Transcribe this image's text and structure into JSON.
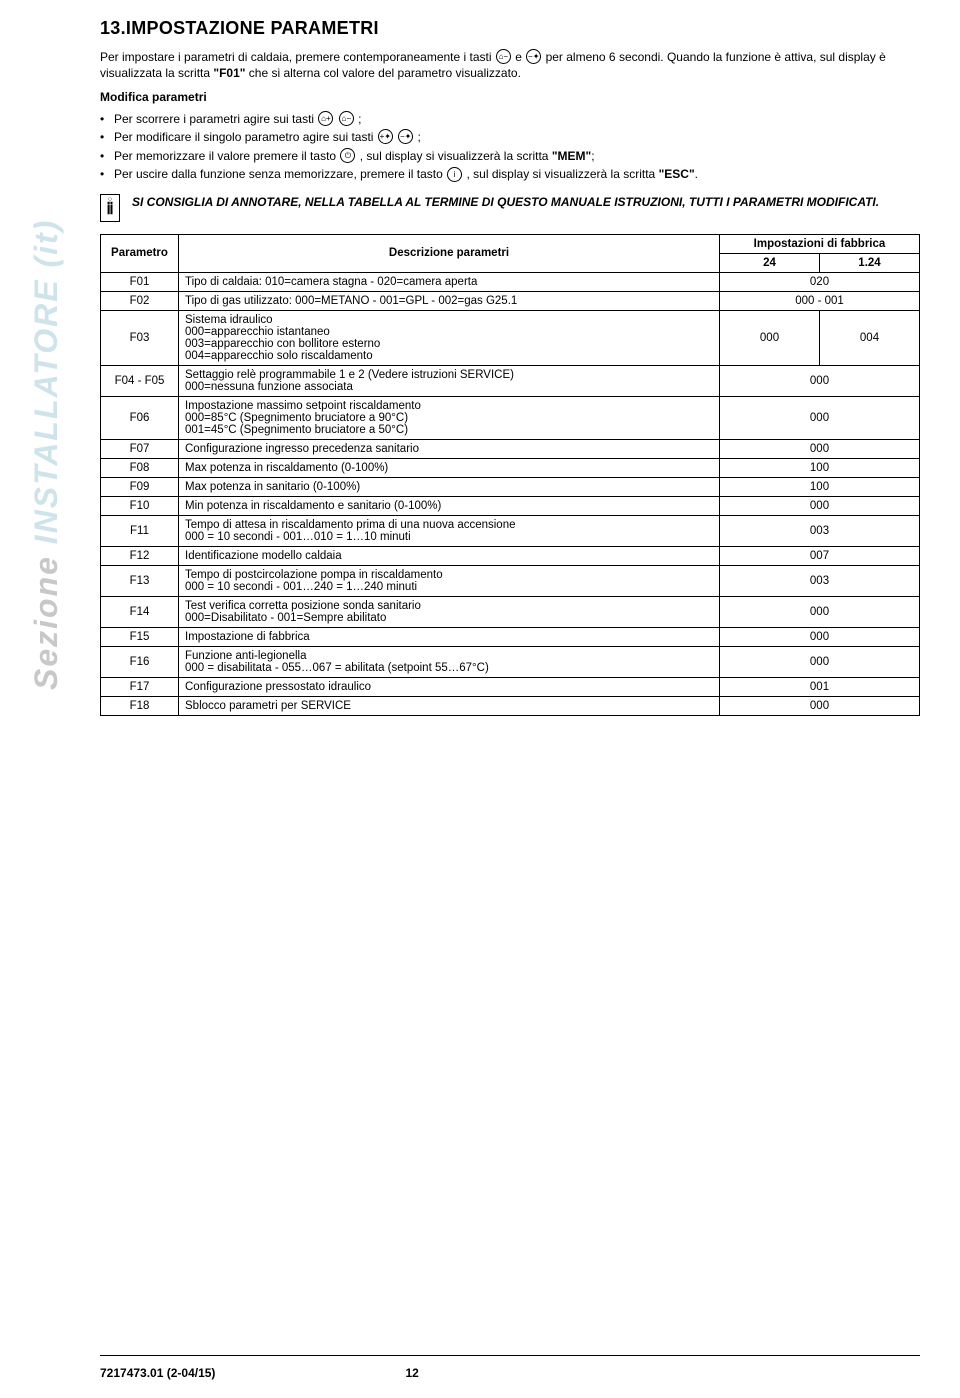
{
  "side_label_primary": "Sezione",
  "side_label_secondary": "INSTALLATORE (it)",
  "title": "13.IMPOSTAZIONE PARAMETRI",
  "intro1_a": "Per impostare i parametri di caldaia, premere contemporaneamente i tasti ",
  "intro1_b": " e ",
  "intro1_c": " per almeno 6 secondi. Quando la funzione è attiva, sul display è visualizzata la scritta ",
  "intro1_f01": "\"F01\"",
  "intro1_d": " che si alterna col valore del parametro visualizzato.",
  "subhead": "Modifica parametri",
  "b1_a": "Per scorrere i parametri agire sui tasti ",
  "b1_b": " ;",
  "b2_a": "Per modificare il singolo parametro agire sui tasti ",
  "b2_b": " ;",
  "b3_a": "Per memorizzare il valore premere il tasto ",
  "b3_b": " , sul display si visualizzerà la scritta ",
  "b3_mem": "\"MEM\"",
  "b3_c": ";",
  "b4_a": "Per uscire dalla funzione senza memorizzare, premere il tasto ",
  "b4_b": " , sul display si visualizzerà la scritta ",
  "b4_esc": "\"ESC\"",
  "b4_c": ".",
  "icon_rad_minus": "⌂−",
  "icon_tap_minus": "−✦",
  "icon_rad_plus": "⌂+",
  "icon_tap_plus": "+✦",
  "icon_power": "⏻",
  "icon_info": "i",
  "note_text": "SI CONSIGLIA DI ANNOTARE, NELLA TABELLA AL TERMINE DI QUESTO MANUALE ISTRUZIONI, TUTTI I PARAMETRI MODIFICATI.",
  "table": {
    "head_param": "Parametro",
    "head_desc": "Descrizione parametri",
    "head_factory": "Impostazioni di fabbrica",
    "head_c1": "24",
    "head_c2": "1.24",
    "rows": [
      {
        "p": "F01",
        "d": "Tipo di caldaia: 010=camera stagna - 020=camera aperta",
        "v1": "020",
        "v2": null
      },
      {
        "p": "F02",
        "d": "Tipo di gas utilizzato: 000=METANO - 001=GPL - 002=gas G25.1",
        "v1": "000 - 001",
        "v2": null
      },
      {
        "p": "F03",
        "d": "Sistema idraulico\n000=apparecchio istantaneo\n003=apparecchio con bollitore esterno\n004=apparecchio solo riscaldamento",
        "v1": "000",
        "v2": "004"
      },
      {
        "p": "F04 - F05",
        "d": "Settaggio relè programmabile 1 e 2 (Vedere istruzioni SERVICE)\n000=nessuna funzione associata",
        "v1": "000",
        "v2": null
      },
      {
        "p": "F06",
        "d": "Impostazione massimo setpoint riscaldamento\n000=85°C (Spegnimento bruciatore a 90°C)\n001=45°C (Spegnimento bruciatore a 50°C)",
        "v1": "000",
        "v2": null
      },
      {
        "p": "F07",
        "d": "Configurazione ingresso precedenza sanitario",
        "v1": "000",
        "v2": null
      },
      {
        "p": "F08",
        "d": "Max potenza in riscaldamento (0-100%)",
        "v1": "100",
        "v2": null
      },
      {
        "p": "F09",
        "d": "Max potenza in sanitario (0-100%)",
        "v1": "100",
        "v2": null
      },
      {
        "p": "F10",
        "d": "Min potenza in riscaldamento e sanitario (0-100%)",
        "v1": "000",
        "v2": null
      },
      {
        "p": "F11",
        "d": "Tempo di attesa in riscaldamento prima di una nuova accensione\n000 = 10 secondi - 001…010 = 1…10 minuti",
        "v1": "003",
        "v2": null
      },
      {
        "p": "F12",
        "d": "Identificazione modello caldaia",
        "v1": "007",
        "v2": null
      },
      {
        "p": "F13",
        "d": "Tempo di postcircolazione pompa in riscaldamento\n000 = 10 secondi - 001…240 = 1…240 minuti",
        "v1": "003",
        "v2": null
      },
      {
        "p": "F14",
        "d": "Test verifica corretta posizione sonda sanitario\n000=Disabilitato - 001=Sempre abilitato",
        "v1": "000",
        "v2": null
      },
      {
        "p": "F15",
        "d": "Impostazione di fabbrica",
        "v1": "000",
        "v2": null
      },
      {
        "p": "F16",
        "d": "Funzione anti-legionella\n000 = disabilitata - 055…067 = abilitata (setpoint 55…67°C)",
        "v1": "000",
        "v2": null
      },
      {
        "p": "F17",
        "d": "Configurazione pressostato idraulico",
        "v1": "001",
        "v2": null
      },
      {
        "p": "F18",
        "d": "Sblocco parametri per SERVICE",
        "v1": "000",
        "v2": null
      }
    ]
  },
  "footer_code": "7217473.01 (2-04/15)",
  "footer_page": "12"
}
